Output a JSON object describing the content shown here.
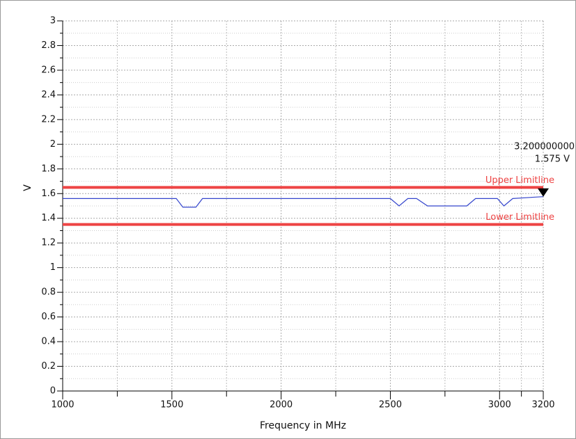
{
  "chart_data": {
    "type": "line",
    "xlabel": "Frequency in MHz",
    "ylabel": "V",
    "xlim": [
      1000,
      3200
    ],
    "xticks": [
      1000,
      1500,
      2000,
      2500,
      3000,
      3200
    ],
    "ylim": [
      0,
      3
    ],
    "yticks": [
      0,
      0.2,
      0.4,
      0.6,
      0.8,
      1,
      1.2,
      1.4,
      1.6,
      1.8,
      2,
      2.2,
      2.4,
      2.6,
      2.8,
      3
    ],
    "grid": true,
    "x": [
      1000,
      1520,
      1550,
      1610,
      1640,
      2500,
      2540,
      2580,
      2620,
      2670,
      2850,
      2890,
      2950,
      2990,
      3020,
      3060,
      3150,
      3200
    ],
    "series": [
      {
        "color": "#3344cc",
        "values": [
          1.56,
          1.56,
          1.49,
          1.49,
          1.56,
          1.56,
          1.5,
          1.56,
          1.56,
          1.5,
          1.5,
          1.56,
          1.56,
          1.56,
          1.5,
          1.56,
          1.57,
          1.575
        ]
      }
    ],
    "limitlines": [
      {
        "name": "Upper Limitline",
        "value": 1.65,
        "color": "#ee4444"
      },
      {
        "name": "Lower Limitline",
        "value": 1.35,
        "color": "#ee4444"
      }
    ],
    "marker": {
      "x": 3200,
      "y": 1.575,
      "x_label": "3.200000000",
      "y_label": "1.575 V"
    }
  }
}
